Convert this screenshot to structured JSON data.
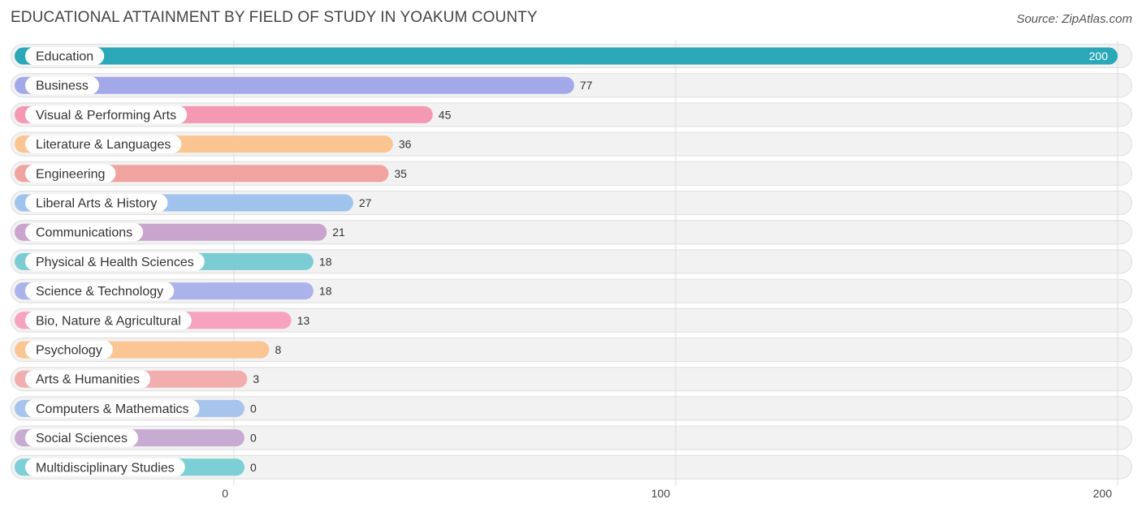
{
  "title": "EDUCATIONAL ATTAINMENT BY FIELD OF STUDY IN YOAKUM COUNTY",
  "source": "Source: ZipAtlas.com",
  "chart_data": {
    "type": "bar",
    "orientation": "horizontal",
    "title": "EDUCATIONAL ATTAINMENT BY FIELD OF STUDY IN YOAKUM COUNTY",
    "xlim": [
      0,
      200
    ],
    "x_ticks": [
      0,
      100,
      200
    ],
    "grid": true,
    "categories": [
      "Education",
      "Business",
      "Visual & Performing Arts",
      "Literature & Languages",
      "Engineering",
      "Liberal Arts & History",
      "Communications",
      "Physical & Health Sciences",
      "Science & Technology",
      "Bio, Nature & Agricultural",
      "Psychology",
      "Arts & Humanities",
      "Computers & Mathematics",
      "Social Sciences",
      "Multidisciplinary Studies"
    ],
    "values": [
      200,
      77,
      45,
      36,
      35,
      27,
      21,
      18,
      18,
      13,
      8,
      3,
      0,
      0,
      0
    ],
    "colors": [
      "#2aa8b8",
      "#a3a9e8",
      "#f598b4",
      "#fbc592",
      "#f0a39f",
      "#9fc3ec",
      "#c9a4cd",
      "#7ccdd3",
      "#acb3ea",
      "#f7a3bf",
      "#fbc594",
      "#f2aeae",
      "#a7c4ec",
      "#c8abd3",
      "#7ccfd4"
    ]
  }
}
